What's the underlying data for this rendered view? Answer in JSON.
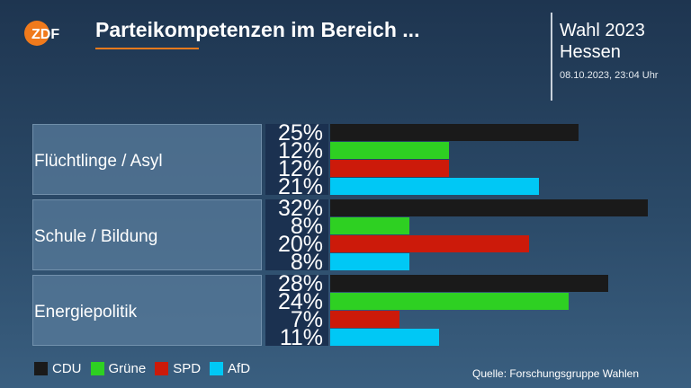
{
  "brand": {
    "logo_text": "ZDF"
  },
  "header": {
    "title": "Parteikompetenzen im Bereich ...",
    "election_line1": "Wahl 2023",
    "election_line2": "Hessen",
    "timestamp": "08.10.2023, 23:04 Uhr"
  },
  "colors": {
    "CDU": "#1a1a1a",
    "Grüne": "#2ed022",
    "SPD": "#cc1a0a",
    "AfD": "#00c8f5"
  },
  "chart_data": {
    "type": "bar",
    "orientation": "horizontal",
    "categories": [
      "Flüchtlinge / Asyl",
      "Schule / Bildung",
      "Energiepolitik"
    ],
    "unit": "%",
    "series": [
      {
        "name": "CDU",
        "values": [
          25,
          32,
          28
        ]
      },
      {
        "name": "Grüne",
        "values": [
          12,
          8,
          24
        ]
      },
      {
        "name": "SPD",
        "values": [
          12,
          20,
          7
        ]
      },
      {
        "name": "AfD",
        "values": [
          21,
          8,
          11
        ]
      }
    ],
    "labels": [
      [
        "25%",
        "12%",
        "12%",
        "21%"
      ],
      [
        "32%",
        "8%",
        "20%",
        "8%"
      ],
      [
        "28%",
        "24%",
        "7%",
        "11%"
      ]
    ],
    "legend_position": "bottom-left"
  },
  "footer": {
    "source": "Quelle: Forschungsgruppe Wahlen"
  }
}
